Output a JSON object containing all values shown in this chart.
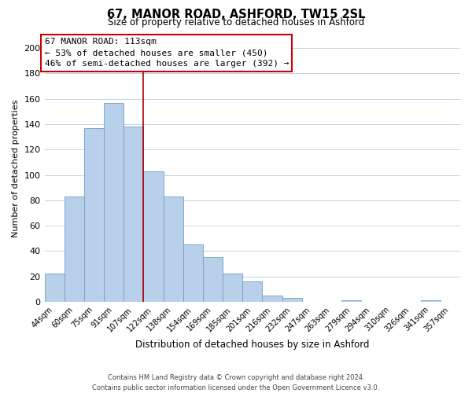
{
  "title": "67, MANOR ROAD, ASHFORD, TW15 2SL",
  "subtitle": "Size of property relative to detached houses in Ashford",
  "xlabel": "Distribution of detached houses by size in Ashford",
  "ylabel": "Number of detached properties",
  "bar_labels": [
    "44sqm",
    "60sqm",
    "75sqm",
    "91sqm",
    "107sqm",
    "122sqm",
    "138sqm",
    "154sqm",
    "169sqm",
    "185sqm",
    "201sqm",
    "216sqm",
    "232sqm",
    "247sqm",
    "263sqm",
    "279sqm",
    "294sqm",
    "310sqm",
    "326sqm",
    "341sqm",
    "357sqm"
  ],
  "bar_values": [
    22,
    83,
    137,
    157,
    138,
    103,
    83,
    45,
    35,
    22,
    16,
    5,
    3,
    0,
    0,
    1,
    0,
    0,
    0,
    1,
    0
  ],
  "bar_color": "#b8d0ea",
  "bar_edge_color": "#6fa0c8",
  "vline_x": 4.5,
  "vline_color": "#aa0000",
  "ylim": [
    0,
    210
  ],
  "yticks": [
    0,
    20,
    40,
    60,
    80,
    100,
    120,
    140,
    160,
    180,
    200
  ],
  "annotation_title": "67 MANOR ROAD: 113sqm",
  "annotation_line1": "← 53% of detached houses are smaller (450)",
  "annotation_line2": "46% of semi-detached houses are larger (392) →",
  "annotation_box_color": "#ffffff",
  "annotation_box_edge": "#cc0000",
  "footer_line1": "Contains HM Land Registry data © Crown copyright and database right 2024.",
  "footer_line2": "Contains public sector information licensed under the Open Government Licence v3.0.",
  "background_color": "#ffffff",
  "grid_color": "#c0d4e8"
}
